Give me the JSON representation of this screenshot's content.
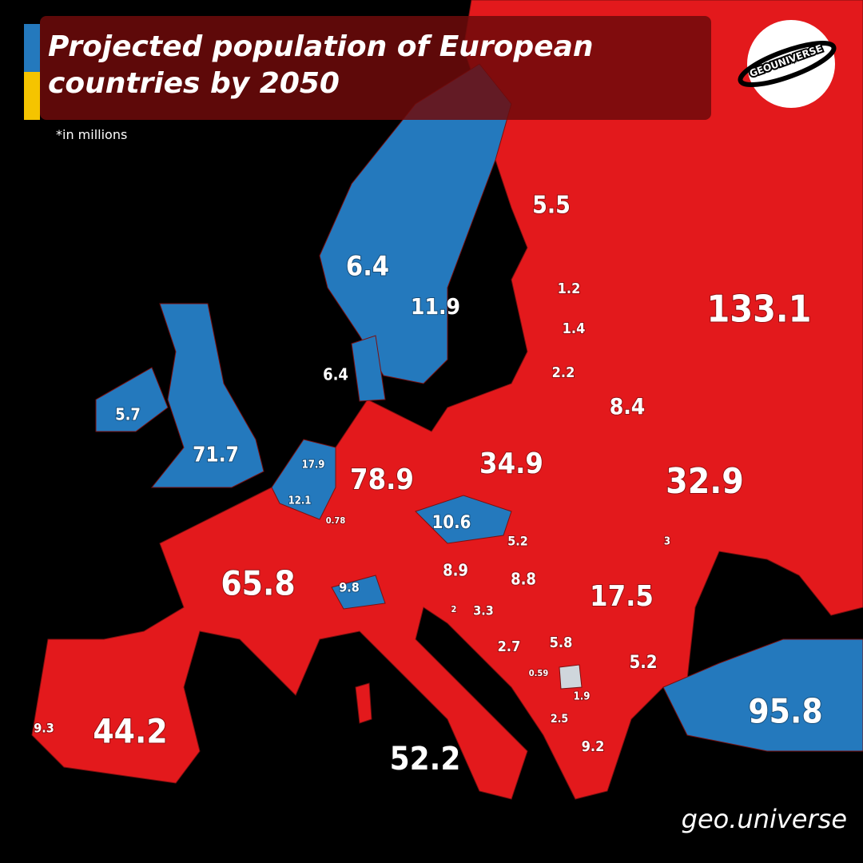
{
  "title": "Projected population of European countries by 2050",
  "note": "*in millions",
  "logo": "GEOUNIVERSE",
  "watermark": "geo.universe",
  "labels": [
    5.5,
    6.4,
    11.9,
    1.2,
    1.4,
    133.1,
    6.4,
    2.2,
    5.7,
    8.4,
    71.7,
    17.9,
    78.9,
    34.9,
    32.9,
    12.1,
    0.78,
    10.6,
    5.2,
    3,
    65.8,
    9.8,
    8.9,
    8.8,
    17.5,
    2,
    3.3,
    2.7,
    5.8,
    5.2,
    0.59,
    1.9,
    95.8,
    2.5,
    9.3,
    44.2,
    9.2,
    52.2
  ]
}
